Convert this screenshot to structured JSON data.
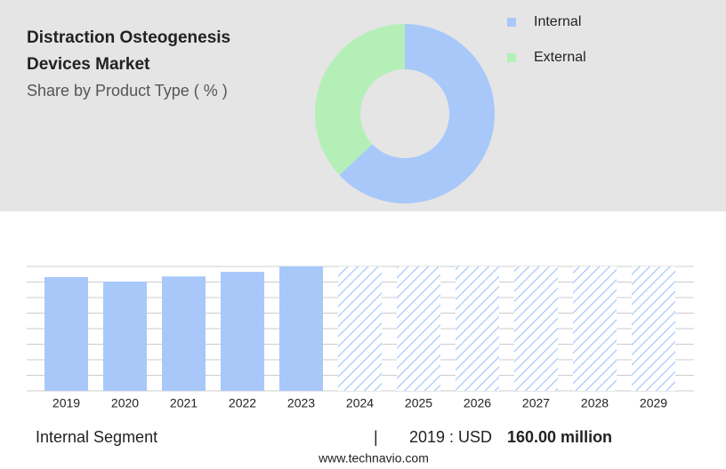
{
  "title": [
    "Distraction Osteogenesis",
    "Devices Market"
  ],
  "subtitle": "Share by Product Type ( % )",
  "chart_data": [
    {
      "type": "donut",
      "categories": [
        "Internal",
        "External"
      ],
      "values": [
        63,
        37
      ],
      "colors": [
        "#a8c8fa",
        "#b5efb8"
      ]
    },
    {
      "type": "bar",
      "categories": [
        "2019",
        "2020",
        "2021",
        "2022",
        "2023",
        "2024",
        "2025",
        "2026",
        "2027",
        "2028",
        "2029"
      ],
      "values": [
        160,
        153.75,
        161,
        167.5,
        175,
        null,
        null,
        null,
        null,
        null,
        null
      ],
      "color": "#a8c8fa",
      "ylim": [
        0,
        175
      ]
    }
  ],
  "footer": {
    "segment": "Internal Segment",
    "separator": "|",
    "year_label": "2019 : USD",
    "value_label": "160.00 million",
    "source": "www.technavio.com"
  }
}
